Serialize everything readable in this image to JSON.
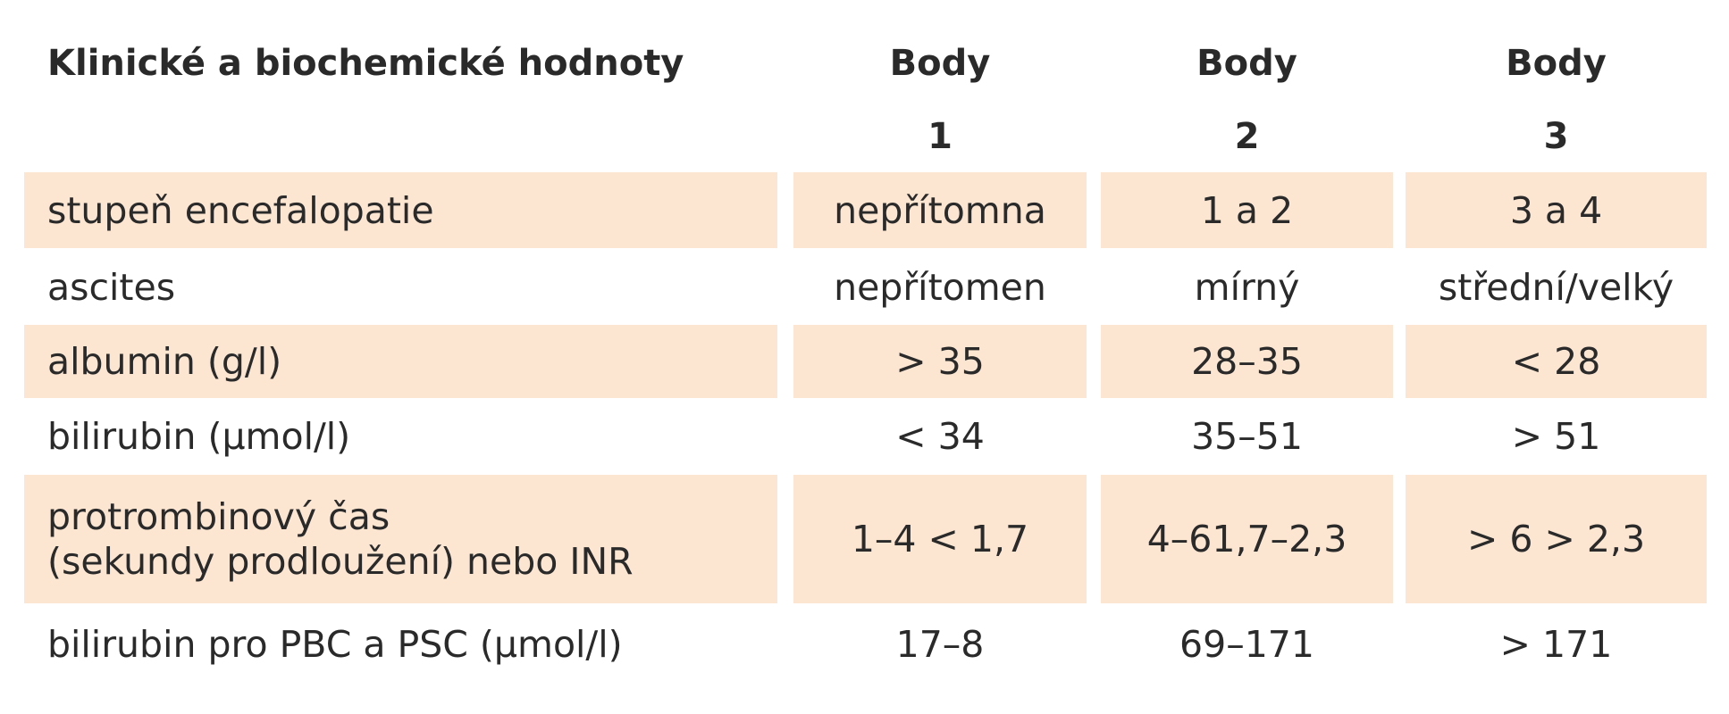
{
  "header": {
    "title": "Klinické a biochemické hodnoty",
    "columns": [
      [
        "Body",
        "1"
      ],
      [
        "Body",
        "2"
      ],
      [
        "Body",
        "3"
      ]
    ]
  },
  "rows": [
    [
      [
        "stupeň encefalopatie"
      ],
      "nepřítomna",
      "1 a 2",
      "3 a 4"
    ],
    [
      [
        "ascites"
      ],
      "nepřítomen",
      "mírný",
      "střední/velký"
    ],
    [
      [
        "albumin (g/l)"
      ],
      "> 35",
      "28–35",
      "< 28"
    ],
    [
      [
        "bilirubin (μmol/l)"
      ],
      "< 34",
      "35–51",
      "> 51"
    ],
    [
      [
        "protrombinový čas",
        "(sekundy prodloužení) nebo INR"
      ],
      "1–4 < 1,7",
      "4–61,7–2,3",
      "> 6 > 2,3"
    ],
    [
      [
        "bilirubin pro PBC a PSC (μmol/l)"
      ],
      "17–8",
      "69–171",
      "> 171"
    ]
  ]
}
